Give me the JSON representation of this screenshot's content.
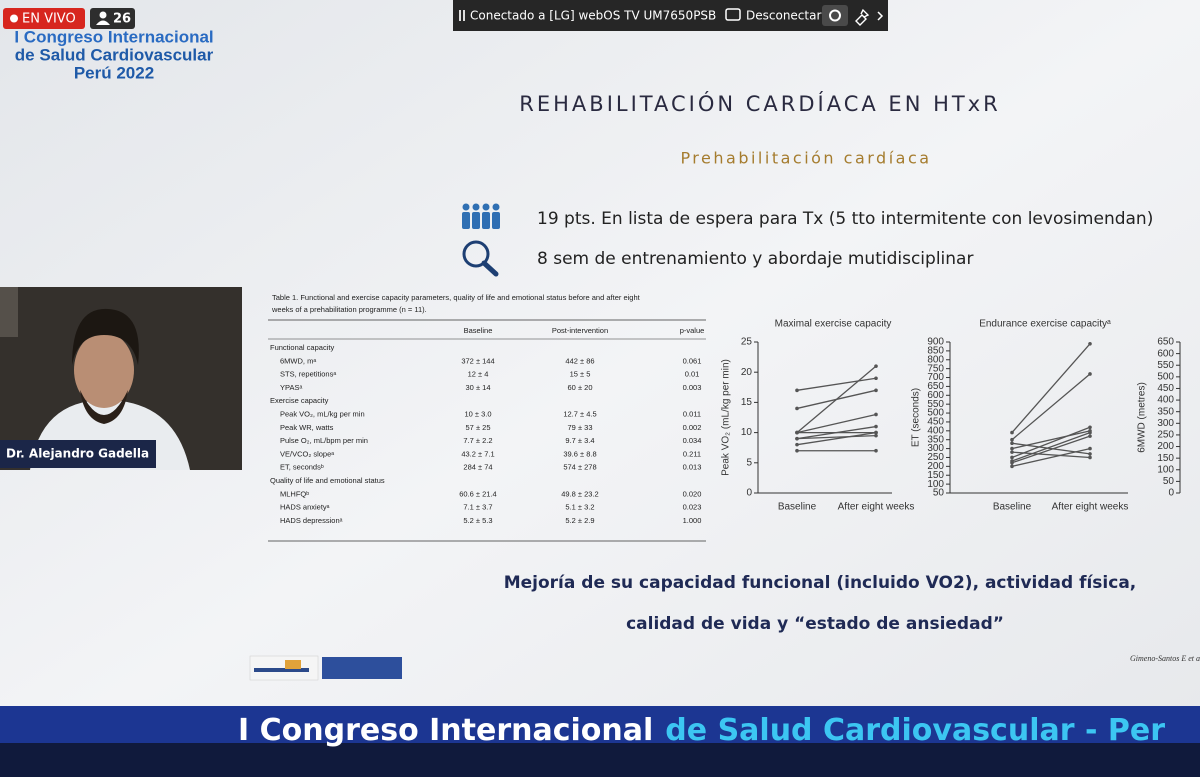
{
  "stream": {
    "live_badge": "EN VIVO",
    "viewers": "26"
  },
  "cast_bar": {
    "status": "Conectado a [LG] webOS TV UM7650PSB",
    "disconnect": "Desconectar"
  },
  "congress_logo": {
    "lines": [
      "I Congreso Internacional",
      "de Salud Cardiovascular",
      "Perú 2022"
    ]
  },
  "presenter": {
    "name": "Dr. Alejandro Gadella"
  },
  "slide": {
    "title": "REHABILITACIÓN CARDÍACA EN HTxR",
    "subtitle": "Prehabilitación cardíaca",
    "bullets": [
      "19 pts. En lista de espera para Tx (5 tto intermitente con levosimendan)",
      "8 sem de entrenamiento y abordaje mutidisciplinar"
    ],
    "table": {
      "caption": [
        "Table 1.  Functional and exercise capacity parameters, quality of life and emotional status before and after eight",
        "weeks of a prehabilitation programme (n = 11)."
      ],
      "header": [
        "Baseline",
        "Post-intervention",
        "p-value"
      ],
      "rows": [
        [
          "Functional capacity"
        ],
        [
          "6MWD, mᵃ",
          "372 ± 144",
          "442 ± 86",
          "0.061"
        ],
        [
          "STS, repetitionsᵃ",
          "12 ± 4",
          "15 ± 5",
          "0.01"
        ],
        [
          "YPASᵃ",
          "30 ± 14",
          "60 ± 20",
          "0.003"
        ],
        [
          "Exercise capacity"
        ],
        [
          "Peak VO₂, mL/kg per min",
          "10 ± 3.0",
          "12.7 ± 4.5",
          "0.011"
        ],
        [
          "Peak WR, watts",
          "57 ± 25",
          "79 ± 33",
          "0.002"
        ],
        [
          "Pulse O₂, mL/bpm per min",
          "7.7 ± 2.2",
          "9.7 ± 3.4",
          "0.034"
        ],
        [
          "VE/VCO₂ slopeᵃ",
          "43.2 ± 7.1",
          "39.6 ± 8.8",
          "0.211"
        ],
        [
          "ET, secondsᵇ",
          "284 ± 74",
          "574 ± 278",
          "0.013"
        ],
        [
          "Quality of life and emotional status"
        ],
        [
          "MLHFQᵇ",
          "60.6 ± 21.4",
          "49.8 ± 23.2",
          "0.020"
        ],
        [
          "HADS anxietyᵃ",
          "7.1 ± 3.7",
          "5.1 ± 3.2",
          "0.023"
        ],
        [
          "HADS depressionᵃ",
          "5.2 ± 5.3",
          "5.2 ± 2.9",
          "1.000"
        ]
      ]
    },
    "charts": [
      {
        "type": "line",
        "title": "Maximal exercise capacity",
        "y_label": "Peak VO₂ (mL/kg per min)",
        "categories": [
          "Baseline",
          "After eight weeks"
        ],
        "ylim": [
          0,
          25
        ],
        "yticks": [
          0,
          5,
          10,
          15,
          20,
          25
        ],
        "color": "#555555",
        "series": [
          {
            "values": [
              17,
              19
            ]
          },
          {
            "values": [
              14,
              17
            ]
          },
          {
            "values": [
              10,
              21
            ]
          },
          {
            "values": [
              10,
              13
            ]
          },
          {
            "values": [
              9,
              11
            ]
          },
          {
            "values": [
              8,
              10
            ]
          },
          {
            "values": [
              10,
              10
            ]
          },
          {
            "values": [
              9,
              9.5
            ]
          },
          {
            "values": [
              7,
              7
            ]
          }
        ]
      },
      {
        "type": "line",
        "title": "Endurance exercise capacityᵃ",
        "y_label": "ET (seconds)",
        "y2_label": "6MWD (metres)",
        "categories": [
          "Baseline",
          "After eight weeks"
        ],
        "ylim": [
          50,
          900
        ],
        "yticks": [
          50,
          100,
          150,
          200,
          250,
          300,
          350,
          400,
          450,
          500,
          550,
          600,
          650,
          700,
          750,
          800,
          850,
          900
        ],
        "y2lim": [
          0,
          650
        ],
        "y2ticks": [
          0,
          50,
          100,
          150,
          200,
          250,
          300,
          350,
          400,
          450,
          500,
          550,
          600,
          650
        ],
        "color": "#555555",
        "series": [
          {
            "values": [
              390,
              890
            ]
          },
          {
            "values": [
              350,
              720
            ]
          },
          {
            "values": [
              300,
              400
            ]
          },
          {
            "values": [
              250,
              420
            ]
          },
          {
            "values": [
              220,
              370
            ]
          },
          {
            "values": [
              200,
              300
            ]
          },
          {
            "values": [
              280,
              250
            ]
          },
          {
            "values": [
              330,
              270
            ]
          },
          {
            "values": [
              230,
              390
            ]
          }
        ]
      }
    ],
    "conclusion": [
      "Mejoría de su capacidad funcional (incluido VO2), actividad física,",
      "calidad de vida y “estado de ansiedad”"
    ],
    "citation": "Gimeno-Santos E et a"
  },
  "banner": {
    "part1": "I Congreso Internacional",
    "part2": "de Salud Cardiovascular - Per"
  }
}
